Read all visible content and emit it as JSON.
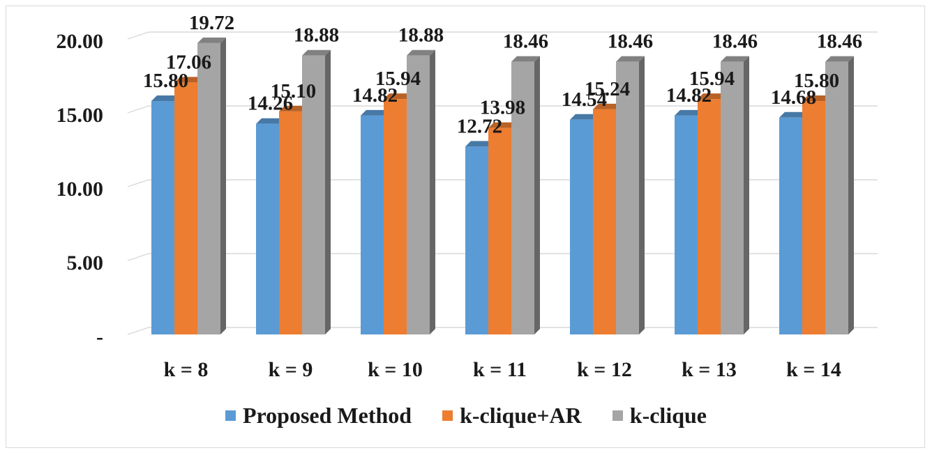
{
  "chart_data": {
    "type": "bar",
    "categories": [
      "k = 8",
      "k = 9",
      "k = 10",
      "k = 11",
      "k = 12",
      "k = 13",
      "k = 14"
    ],
    "series": [
      {
        "name": "Proposed Method",
        "color": "#5b9bd5",
        "values": [
          15.8,
          14.26,
          14.82,
          12.72,
          14.54,
          14.82,
          14.68
        ],
        "labels": [
          "15.80",
          "14.26",
          "14.82",
          "12.72",
          "14.54",
          "14.82",
          "14.68"
        ]
      },
      {
        "name": "k-clique+AR",
        "color": "#ed7d31",
        "values": [
          17.06,
          15.1,
          15.94,
          13.98,
          15.24,
          15.94,
          15.8
        ],
        "labels": [
          "17.06",
          "15.10",
          "15.94",
          "13.98",
          "15.24",
          "15.94",
          "15.80"
        ]
      },
      {
        "name": "k-clique",
        "color": "#a5a5a5",
        "values": [
          19.72,
          18.88,
          18.88,
          18.46,
          18.46,
          18.46,
          18.46
        ],
        "labels": [
          "19.72",
          "18.88",
          "18.88",
          "18.46",
          "18.46",
          "18.46",
          "18.46"
        ]
      }
    ],
    "y_ticks": [
      0,
      5,
      10,
      15,
      20
    ],
    "y_tick_labels": [
      "-",
      "5.00",
      "10.00",
      "15.00",
      "20.00"
    ],
    "ylim": [
      0,
      20
    ],
    "title": "",
    "xlabel": "",
    "ylabel": "",
    "grid": true,
    "legend_position": "bottom",
    "style": "3d-clustered-column"
  }
}
